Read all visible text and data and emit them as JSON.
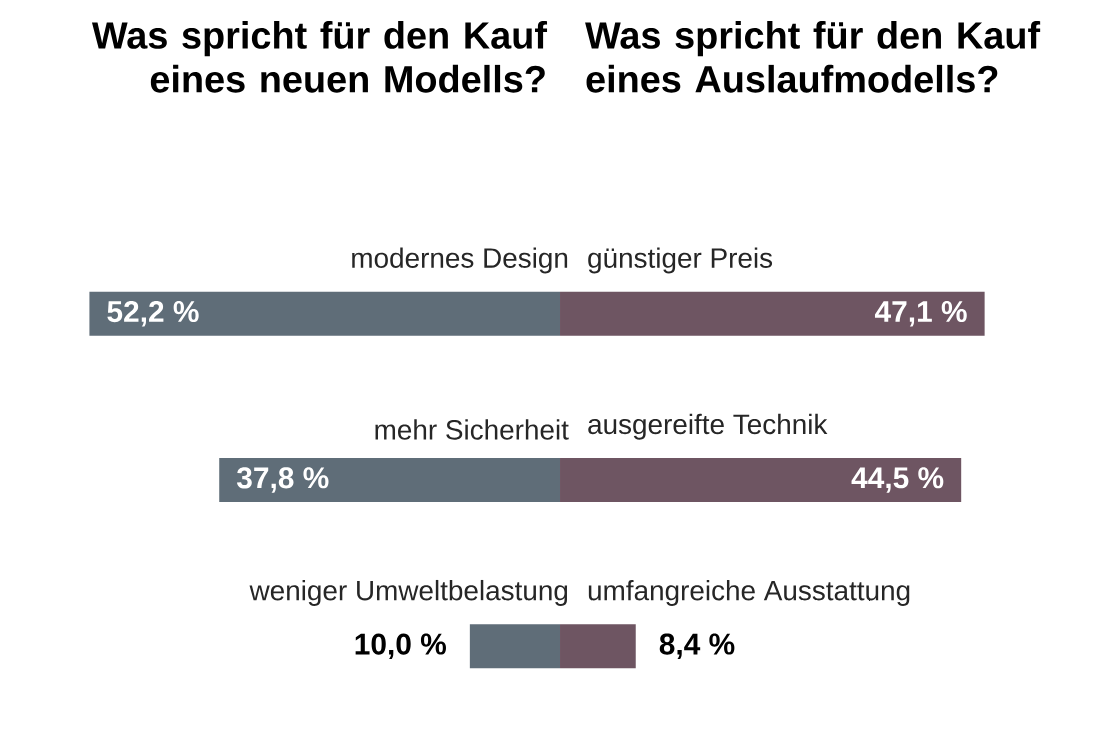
{
  "chart_data": [
    {
      "type": "bar",
      "orientation": "horizontal",
      "title": "Was spricht für den Kauf eines neuen Modells?",
      "categories": [
        "modernes Design",
        "mehr Sicherheit",
        "weniger Umweltbelastung"
      ],
      "values": [
        52.2,
        37.8,
        10.0
      ],
      "value_labels": [
        "52,2 %",
        "37,8 %",
        "10,0 %"
      ],
      "color": "#5f6d78",
      "tick_labels": false
    },
    {
      "type": "bar",
      "orientation": "horizontal",
      "title": "Was spricht für den Kauf eines Auslaufmodells?",
      "categories": [
        "günstiger Preis",
        "ausgereifte Technik",
        "umfangreiche Ausstattung"
      ],
      "values": [
        47.1,
        44.5,
        8.4
      ],
      "value_labels": [
        "47,1 %",
        "44,5 %",
        "8,4 %"
      ],
      "color": "#6e5562",
      "tick_labels": false
    }
  ]
}
